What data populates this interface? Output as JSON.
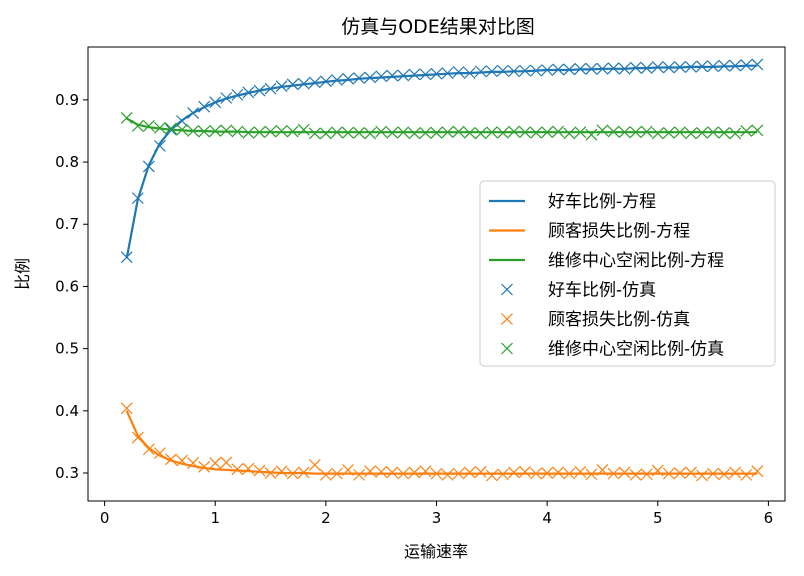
{
  "chart_data": {
    "type": "line",
    "title": "仿真与ODE结果对比图",
    "xlabel": "运输速率",
    "ylabel": "比例",
    "xlim": [
      -0.15,
      6.15
    ],
    "ylim": [
      0.255,
      0.985
    ],
    "xticks": [
      0,
      1,
      2,
      3,
      4,
      5,
      6
    ],
    "yticks": [
      0.3,
      0.4,
      0.5,
      0.6,
      0.7,
      0.8,
      0.9
    ],
    "grid": false,
    "legend_position": "center-right",
    "x": [
      0.2,
      0.3,
      0.4,
      0.5,
      0.6,
      0.7,
      0.8,
      0.9,
      1.0,
      1.1,
      1.2,
      1.3,
      1.4,
      1.5,
      1.6,
      1.7,
      1.8,
      1.9,
      2.0,
      2.1,
      2.2,
      2.3,
      2.4,
      2.5,
      2.6,
      2.7,
      2.8,
      2.9,
      3.0,
      3.1,
      3.2,
      3.3,
      3.4,
      3.5,
      3.6,
      3.7,
      3.8,
      3.9,
      4.0,
      4.1,
      4.2,
      4.3,
      4.4,
      4.5,
      4.6,
      4.7,
      4.8,
      4.9,
      5.0,
      5.1,
      5.2,
      5.3,
      5.4,
      5.5,
      5.6,
      5.7,
      5.8,
      5.9
    ],
    "series": [
      {
        "name": "好车比例-方程",
        "kind": "line",
        "color": "#1f77b4",
        "values": [
          0.645,
          0.74,
          0.795,
          0.83,
          0.852,
          0.867,
          0.879,
          0.888,
          0.896,
          0.902,
          0.907,
          0.911,
          0.915,
          0.918,
          0.921,
          0.923,
          0.925,
          0.927,
          0.929,
          0.931,
          0.932,
          0.934,
          0.935,
          0.936,
          0.937,
          0.938,
          0.939,
          0.94,
          0.941,
          0.942,
          0.943,
          0.943,
          0.944,
          0.945,
          0.945,
          0.946,
          0.946,
          0.947,
          0.948,
          0.948,
          0.948,
          0.949,
          0.949,
          0.95,
          0.95,
          0.95,
          0.951,
          0.951,
          0.952,
          0.952,
          0.952,
          0.953,
          0.953,
          0.953,
          0.954,
          0.954,
          0.955,
          0.955
        ]
      },
      {
        "name": "顾客损失比例-方程",
        "kind": "line",
        "color": "#ff7f0e",
        "values": [
          0.4,
          0.36,
          0.34,
          0.328,
          0.32,
          0.315,
          0.311,
          0.308,
          0.306,
          0.305,
          0.304,
          0.303,
          0.302,
          0.301,
          0.3,
          0.3,
          0.3,
          0.299,
          0.299,
          0.299,
          0.299,
          0.299,
          0.299,
          0.299,
          0.299,
          0.299,
          0.299,
          0.299,
          0.299,
          0.299,
          0.299,
          0.299,
          0.299,
          0.299,
          0.299,
          0.299,
          0.299,
          0.299,
          0.299,
          0.299,
          0.299,
          0.299,
          0.299,
          0.299,
          0.299,
          0.299,
          0.299,
          0.299,
          0.299,
          0.299,
          0.299,
          0.299,
          0.299,
          0.299,
          0.299,
          0.299,
          0.299,
          0.299
        ]
      },
      {
        "name": "维修中心空闲比例-方程",
        "kind": "line",
        "color": "#2ca02c",
        "values": [
          0.87,
          0.86,
          0.856,
          0.854,
          0.852,
          0.851,
          0.85,
          0.85,
          0.849,
          0.849,
          0.849,
          0.848,
          0.848,
          0.848,
          0.848,
          0.848,
          0.848,
          0.848,
          0.848,
          0.848,
          0.848,
          0.848,
          0.848,
          0.848,
          0.848,
          0.848,
          0.848,
          0.848,
          0.848,
          0.848,
          0.848,
          0.848,
          0.848,
          0.848,
          0.848,
          0.848,
          0.848,
          0.848,
          0.848,
          0.848,
          0.848,
          0.848,
          0.848,
          0.848,
          0.848,
          0.848,
          0.848,
          0.848,
          0.848,
          0.848,
          0.848,
          0.848,
          0.848,
          0.848,
          0.848,
          0.848,
          0.848,
          0.848
        ]
      },
      {
        "name": "好车比例-仿真",
        "kind": "scatter",
        "marker": "x",
        "color": "#1f77b4",
        "values": [
          0.647,
          0.742,
          0.793,
          0.826,
          0.852,
          0.866,
          0.879,
          0.889,
          0.896,
          0.903,
          0.908,
          0.912,
          0.915,
          0.918,
          0.922,
          0.925,
          0.926,
          0.928,
          0.93,
          0.932,
          0.934,
          0.935,
          0.936,
          0.938,
          0.939,
          0.939,
          0.941,
          0.941,
          0.942,
          0.943,
          0.945,
          0.943,
          0.946,
          0.946,
          0.947,
          0.946,
          0.947,
          0.947,
          0.948,
          0.949,
          0.949,
          0.95,
          0.95,
          0.95,
          0.951,
          0.95,
          0.952,
          0.951,
          0.953,
          0.952,
          0.953,
          0.953,
          0.954,
          0.954,
          0.955,
          0.955,
          0.956,
          0.957
        ]
      },
      {
        "name": "顾客损失比例-仿真",
        "kind": "scatter",
        "marker": "x",
        "color": "#ff7f0e",
        "values": [
          0.404,
          0.357,
          0.338,
          0.332,
          0.322,
          0.32,
          0.316,
          0.31,
          0.316,
          0.317,
          0.306,
          0.307,
          0.304,
          0.3,
          0.303,
          0.299,
          0.301,
          0.313,
          0.297,
          0.299,
          0.305,
          0.297,
          0.303,
          0.302,
          0.301,
          0.299,
          0.301,
          0.303,
          0.299,
          0.297,
          0.299,
          0.301,
          0.302,
          0.296,
          0.298,
          0.301,
          0.302,
          0.299,
          0.3,
          0.301,
          0.299,
          0.302,
          0.298,
          0.305,
          0.299,
          0.301,
          0.297,
          0.298,
          0.304,
          0.299,
          0.3,
          0.301,
          0.296,
          0.299,
          0.298,
          0.301,
          0.297,
          0.303
        ]
      },
      {
        "name": "维修中心空闲比例-仿真",
        "kind": "scatter",
        "marker": "x",
        "color": "#2ca02c",
        "values": [
          0.871,
          0.858,
          0.858,
          0.855,
          0.854,
          0.852,
          0.85,
          0.849,
          0.85,
          0.851,
          0.849,
          0.847,
          0.848,
          0.849,
          0.85,
          0.849,
          0.852,
          0.846,
          0.846,
          0.848,
          0.847,
          0.847,
          0.846,
          0.849,
          0.847,
          0.848,
          0.846,
          0.847,
          0.847,
          0.848,
          0.849,
          0.847,
          0.846,
          0.848,
          0.847,
          0.849,
          0.848,
          0.847,
          0.848,
          0.849,
          0.846,
          0.848,
          0.844,
          0.851,
          0.849,
          0.848,
          0.848,
          0.849,
          0.846,
          0.847,
          0.848,
          0.846,
          0.847,
          0.848,
          0.847,
          0.846,
          0.85,
          0.851
        ]
      }
    ]
  }
}
